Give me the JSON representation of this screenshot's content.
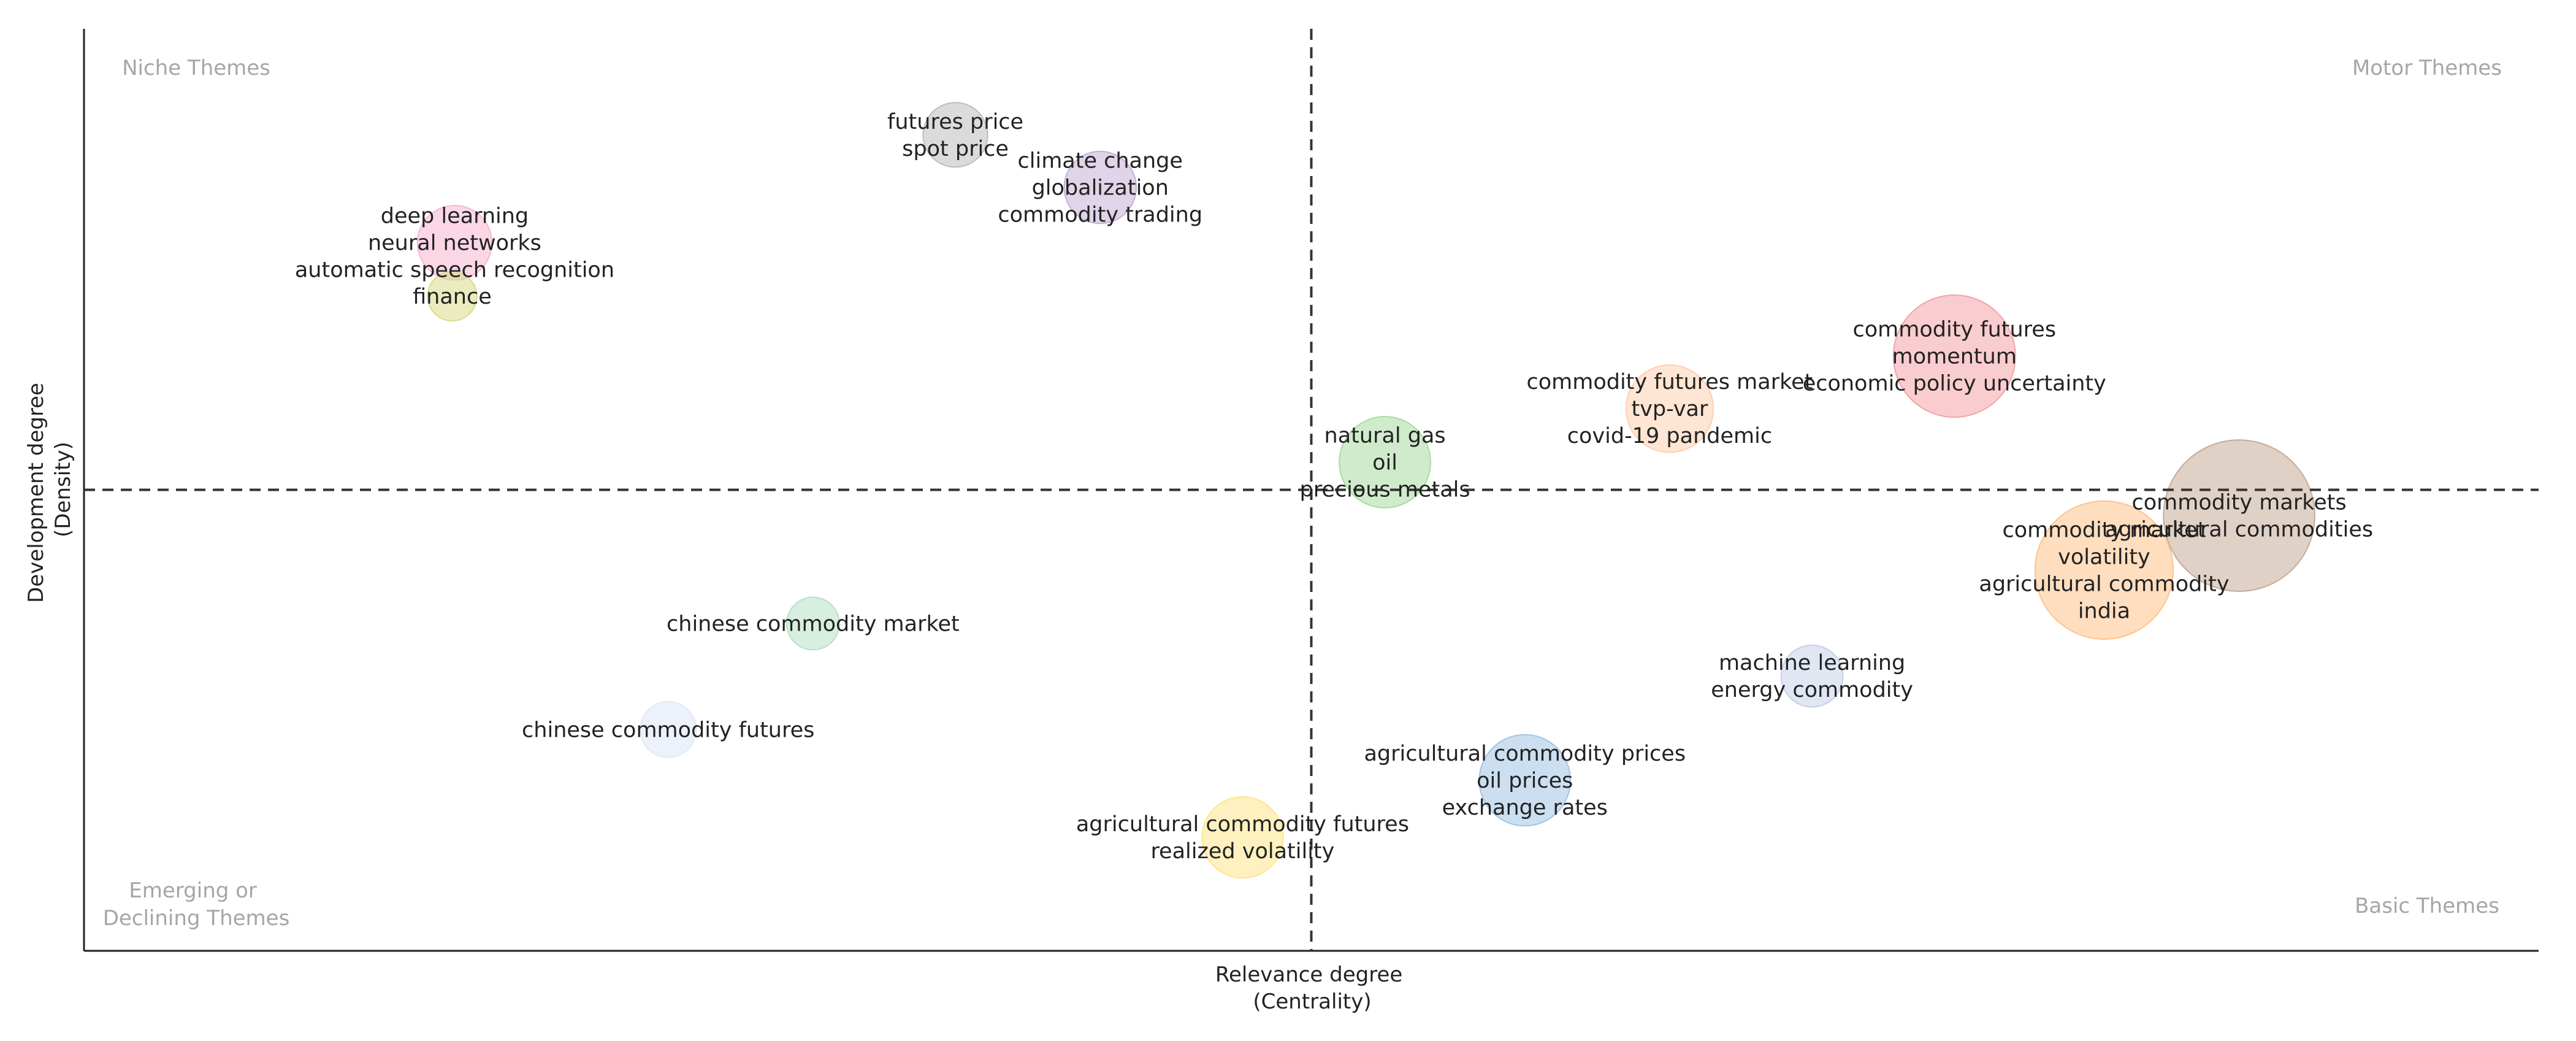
{
  "chart_data": {
    "type": "scatter",
    "title": "",
    "xlabel": [
      "Relevance degree",
      "(Centrality)"
    ],
    "ylabel": [
      "Development degree",
      "(Density)"
    ],
    "xlim": [
      0,
      100
    ],
    "ylim": [
      0,
      100
    ],
    "x_divider": 50,
    "y_divider": 50,
    "quadrants": {
      "top_left": [
        "Niche Themes"
      ],
      "top_right": [
        "Motor Themes"
      ],
      "bottom_left": [
        "Emerging or",
        "Declining Themes"
      ],
      "bottom_right": [
        "Basic Themes"
      ]
    },
    "clusters": [
      {
        "labels": [
          "futures price",
          "spot price"
        ],
        "x": 35.5,
        "y": 88.5,
        "size": 1.2,
        "color": "#bdbdbd"
      },
      {
        "labels": [
          "climate change",
          "globalization",
          "commodity trading"
        ],
        "x": 41.4,
        "y": 82.8,
        "size": 1.5,
        "color": "#c5b0d5"
      },
      {
        "labels": [
          "deep learning",
          "neural networks",
          "automatic speech recognition"
        ],
        "x": 15.1,
        "y": 76.8,
        "size": 1.6,
        "color": "#f7b6d2"
      },
      {
        "labels": [
          "finance"
        ],
        "x": 15.0,
        "y": 71.0,
        "size": 0.7,
        "color": "#dbdb8d"
      },
      {
        "labels": [
          "commodity futures",
          "momentum",
          "economic policy uncertainty"
        ],
        "x": 76.2,
        "y": 64.5,
        "size": 4.3,
        "color": "#f4a3a8"
      },
      {
        "labels": [
          "commodity futures market",
          "tvp-var",
          "covid-19 pandemic"
        ],
        "x": 64.6,
        "y": 58.8,
        "size": 2.2,
        "color": "#ffcfb0"
      },
      {
        "labels": [
          "natural gas",
          "oil",
          "precious metals"
        ],
        "x": 53.0,
        "y": 53.0,
        "size": 2.4,
        "color": "#a9dba2"
      },
      {
        "labels": [
          "commodity markets",
          "agricultural commodities"
        ],
        "x": 87.8,
        "y": 47.2,
        "size": 6.6,
        "color": "#c7ab98"
      },
      {
        "labels": [
          "commodity market",
          "volatility",
          "agricultural commodity",
          "india"
        ],
        "x": 82.3,
        "y": 41.3,
        "size": 5.5,
        "color": "#ffc38a"
      },
      {
        "labels": [
          "machine learning",
          "energy commodity"
        ],
        "x": 70.4,
        "y": 29.8,
        "size": 1.1,
        "color": "#c6d1e8"
      },
      {
        "labels": [
          "chinese commodity market"
        ],
        "x": 29.7,
        "y": 35.5,
        "size": 0.8,
        "color": "#b7e2c4"
      },
      {
        "labels": [
          "chinese commodity futures"
        ],
        "x": 23.8,
        "y": 24.0,
        "size": 0.9,
        "color": "#dfe8f5"
      },
      {
        "labels": [
          "agricultural commodity prices",
          "oil prices",
          "exchange rates"
        ],
        "x": 58.7,
        "y": 18.5,
        "size": 2.4,
        "color": "#a3c4e3"
      },
      {
        "labels": [
          "agricultural commodity futures",
          "realized volatility"
        ],
        "x": 47.2,
        "y": 12.3,
        "size": 1.9,
        "color": "#fde68a"
      }
    ]
  }
}
